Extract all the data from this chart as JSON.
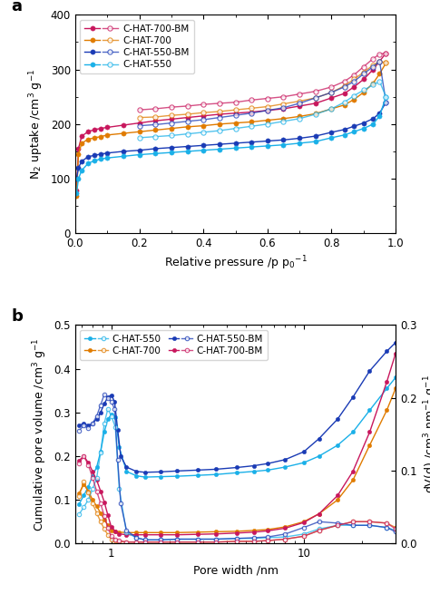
{
  "panel_a": {
    "xlabel": "Relative pressure /p p$_0$$^{-1}$",
    "ylabel": "N$_2$ uptake /cm$^3$ g$^{-1}$",
    "ylim": [
      0,
      400
    ],
    "yticks": [
      0,
      100,
      200,
      300,
      400
    ],
    "xlim": [
      0.0,
      1.0
    ],
    "xticks": [
      0.0,
      0.2,
      0.4,
      0.6,
      0.8,
      1.0
    ],
    "series": [
      {
        "label": "C-HAT-700-BM",
        "color": "#c8175d",
        "ads_x": [
          0.004,
          0.01,
          0.02,
          0.04,
          0.06,
          0.08,
          0.1,
          0.15,
          0.2,
          0.25,
          0.3,
          0.35,
          0.4,
          0.45,
          0.5,
          0.55,
          0.6,
          0.65,
          0.7,
          0.75,
          0.8,
          0.84,
          0.87,
          0.9,
          0.93,
          0.95,
          0.97
        ],
        "ads_y": [
          78,
          155,
          178,
          186,
          190,
          192,
          194,
          198,
          202,
          206,
          209,
          212,
          215,
          218,
          220,
          222,
          225,
          228,
          233,
          238,
          248,
          256,
          268,
          282,
          300,
          315,
          330
        ],
        "des_x": [
          0.97,
          0.95,
          0.93,
          0.9,
          0.87,
          0.84,
          0.8,
          0.75,
          0.7,
          0.65,
          0.6,
          0.55,
          0.5,
          0.45,
          0.4,
          0.35,
          0.3,
          0.25,
          0.2
        ],
        "des_y": [
          330,
          328,
          320,
          305,
          290,
          278,
          268,
          260,
          255,
          250,
          247,
          244,
          240,
          238,
          236,
          233,
          231,
          228,
          226
        ]
      },
      {
        "label": "C-HAT-700",
        "color": "#e07b00",
        "ads_x": [
          0.004,
          0.01,
          0.02,
          0.04,
          0.06,
          0.08,
          0.1,
          0.15,
          0.2,
          0.25,
          0.3,
          0.35,
          0.4,
          0.45,
          0.5,
          0.55,
          0.6,
          0.65,
          0.7,
          0.75,
          0.8,
          0.84,
          0.87,
          0.9,
          0.93,
          0.95,
          0.97
        ],
        "ads_y": [
          68,
          145,
          165,
          172,
          175,
          177,
          180,
          183,
          186,
          189,
          192,
          195,
          197,
          200,
          202,
          204,
          207,
          210,
          214,
          219,
          228,
          235,
          245,
          258,
          275,
          292,
          312
        ],
        "des_x": [
          0.97,
          0.95,
          0.93,
          0.9,
          0.87,
          0.84,
          0.8,
          0.75,
          0.7,
          0.65,
          0.6,
          0.55,
          0.5,
          0.45,
          0.4,
          0.35,
          0.3,
          0.25,
          0.2
        ],
        "des_y": [
          312,
          315,
          308,
          295,
          282,
          270,
          258,
          248,
          242,
          237,
          232,
          229,
          226,
          223,
          221,
          218,
          216,
          213,
          212
        ]
      },
      {
        "label": "C-HAT-550-BM",
        "color": "#1a3bb5",
        "ads_x": [
          0.004,
          0.01,
          0.02,
          0.04,
          0.06,
          0.08,
          0.1,
          0.15,
          0.2,
          0.25,
          0.3,
          0.35,
          0.4,
          0.45,
          0.5,
          0.55,
          0.6,
          0.65,
          0.7,
          0.75,
          0.8,
          0.84,
          0.87,
          0.9,
          0.93,
          0.95,
          0.97
        ],
        "ads_y": [
          100,
          120,
          132,
          140,
          143,
          145,
          147,
          150,
          152,
          155,
          157,
          159,
          161,
          163,
          165,
          167,
          169,
          171,
          174,
          178,
          185,
          190,
          196,
          202,
          210,
          220,
          240
        ],
        "des_x": [
          0.97,
          0.95,
          0.93,
          0.9,
          0.87,
          0.84,
          0.8,
          0.75,
          0.7,
          0.65,
          0.6,
          0.55,
          0.5,
          0.45,
          0.4,
          0.35,
          0.3,
          0.25,
          0.2
        ],
        "des_y": [
          240,
          315,
          305,
          292,
          278,
          268,
          258,
          248,
          238,
          230,
          225,
          220,
          216,
          212,
          208,
          205,
          202,
          199,
          197
        ]
      },
      {
        "label": "C-HAT-550",
        "color": "#1ab0e8",
        "ads_x": [
          0.004,
          0.01,
          0.02,
          0.04,
          0.06,
          0.08,
          0.1,
          0.15,
          0.2,
          0.25,
          0.3,
          0.35,
          0.4,
          0.45,
          0.5,
          0.55,
          0.6,
          0.65,
          0.7,
          0.75,
          0.8,
          0.84,
          0.87,
          0.9,
          0.93,
          0.95,
          0.97
        ],
        "ads_y": [
          73,
          100,
          115,
          128,
          133,
          136,
          138,
          141,
          144,
          146,
          148,
          150,
          152,
          154,
          156,
          158,
          160,
          162,
          165,
          168,
          175,
          180,
          186,
          192,
          200,
          215,
          250
        ],
        "des_x": [
          0.97,
          0.95,
          0.93,
          0.9,
          0.87,
          0.84,
          0.8,
          0.75,
          0.7,
          0.65,
          0.6,
          0.55,
          0.5,
          0.45,
          0.4,
          0.35,
          0.3,
          0.25,
          0.2
        ],
        "des_y": [
          250,
          278,
          272,
          262,
          252,
          240,
          228,
          218,
          210,
          205,
          200,
          196,
          192,
          188,
          185,
          182,
          179,
          177,
          175
        ]
      }
    ]
  },
  "panel_b": {
    "xlabel": "Pore width /nm",
    "ylabel_left": "Cumulative pore volume /cm$^3$ g$^{-1}$",
    "ylabel_right": "dV(d) /cm$^3$ nm$^{-1}$ g$^{-1}$",
    "ylim_left": [
      0,
      0.5
    ],
    "ylim_right": [
      0,
      0.3
    ],
    "yticks_left": [
      0.0,
      0.1,
      0.2,
      0.3,
      0.4,
      0.5
    ],
    "yticks_right": [
      0.0,
      0.1,
      0.2,
      0.3
    ],
    "xlim": [
      0.65,
      30
    ],
    "series": [
      {
        "label": "C-HAT-550",
        "color": "#1ab0e8",
        "cum_x": [
          0.68,
          0.72,
          0.76,
          0.8,
          0.84,
          0.88,
          0.92,
          0.96,
          1.0,
          1.05,
          1.1,
          1.2,
          1.35,
          1.5,
          1.8,
          2.2,
          2.8,
          3.5,
          4.5,
          5.5,
          6.5,
          8.0,
          10.0,
          12.0,
          15.0,
          18.0,
          22.0,
          27.0,
          30.0
        ],
        "cum_y": [
          0.09,
          0.11,
          0.13,
          0.155,
          0.175,
          0.21,
          0.255,
          0.285,
          0.295,
          0.29,
          0.22,
          0.165,
          0.155,
          0.152,
          0.153,
          0.154,
          0.156,
          0.158,
          0.162,
          0.165,
          0.168,
          0.175,
          0.185,
          0.2,
          0.225,
          0.255,
          0.305,
          0.355,
          0.38
        ],
        "dvd_x": [
          0.68,
          0.72,
          0.76,
          0.8,
          0.84,
          0.88,
          0.92,
          0.96,
          1.0,
          1.05,
          1.1,
          1.2,
          1.35,
          1.5,
          1.8,
          2.2,
          2.8,
          3.5,
          4.5,
          5.5,
          6.5,
          8.0,
          10.0,
          12.0,
          15.0,
          18.0,
          22.0,
          27.0,
          30.0
        ],
        "dvd_y": [
          0.04,
          0.05,
          0.06,
          0.075,
          0.09,
          0.125,
          0.165,
          0.185,
          0.175,
          0.16,
          0.075,
          0.015,
          0.008,
          0.005,
          0.005,
          0.006,
          0.006,
          0.006,
          0.007,
          0.007,
          0.008,
          0.009,
          0.013,
          0.02,
          0.025,
          0.025,
          0.025,
          0.022,
          0.018
        ]
      },
      {
        "label": "C-HAT-700",
        "color": "#e07b00",
        "cum_x": [
          0.68,
          0.72,
          0.76,
          0.8,
          0.84,
          0.88,
          0.92,
          0.96,
          1.0,
          1.05,
          1.1,
          1.2,
          1.35,
          1.5,
          1.8,
          2.2,
          2.8,
          3.5,
          4.5,
          5.5,
          6.5,
          8.0,
          10.0,
          12.0,
          15.0,
          18.0,
          22.0,
          27.0,
          30.0
        ],
        "cum_y": [
          0.115,
          0.135,
          0.12,
          0.1,
          0.085,
          0.07,
          0.055,
          0.042,
          0.03,
          0.027,
          0.026,
          0.025,
          0.025,
          0.025,
          0.025,
          0.025,
          0.026,
          0.027,
          0.028,
          0.03,
          0.032,
          0.038,
          0.05,
          0.068,
          0.1,
          0.145,
          0.225,
          0.305,
          0.355
        ],
        "dvd_x": [
          0.68,
          0.72,
          0.76,
          0.8,
          0.84,
          0.88,
          0.92,
          0.96,
          1.0,
          1.05,
          1.1,
          1.2,
          1.35,
          1.5,
          1.8,
          2.2,
          2.8,
          3.5,
          4.5,
          5.5,
          6.5,
          8.0,
          10.0,
          12.0,
          15.0,
          18.0,
          22.0,
          27.0,
          30.0
        ],
        "dvd_y": [
          0.065,
          0.085,
          0.07,
          0.055,
          0.042,
          0.03,
          0.02,
          0.012,
          0.006,
          0.004,
          0.003,
          0.002,
          0.002,
          0.002,
          0.002,
          0.002,
          0.002,
          0.002,
          0.003,
          0.003,
          0.004,
          0.006,
          0.01,
          0.018,
          0.025,
          0.03,
          0.03,
          0.028,
          0.022
        ]
      },
      {
        "label": "C-HAT-550-BM",
        "color": "#1a3bb5",
        "cum_x": [
          0.68,
          0.72,
          0.76,
          0.8,
          0.84,
          0.88,
          0.92,
          0.96,
          1.0,
          1.04,
          1.08,
          1.12,
          1.2,
          1.35,
          1.5,
          1.8,
          2.2,
          2.8,
          3.5,
          4.5,
          5.5,
          6.5,
          8.0,
          10.0,
          12.0,
          15.0,
          18.0,
          22.0,
          27.0,
          30.0
        ],
        "cum_y": [
          0.27,
          0.275,
          0.27,
          0.275,
          0.285,
          0.3,
          0.32,
          0.335,
          0.34,
          0.325,
          0.26,
          0.2,
          0.175,
          0.165,
          0.163,
          0.164,
          0.166,
          0.168,
          0.17,
          0.174,
          0.178,
          0.183,
          0.192,
          0.21,
          0.24,
          0.285,
          0.335,
          0.395,
          0.44,
          0.46
        ],
        "dvd_x": [
          0.68,
          0.72,
          0.76,
          0.8,
          0.84,
          0.88,
          0.92,
          0.96,
          1.0,
          1.04,
          1.08,
          1.12,
          1.2,
          1.35,
          1.5,
          1.8,
          2.2,
          2.8,
          3.5,
          4.5,
          5.5,
          6.5,
          8.0,
          10.0,
          12.0,
          15.0,
          18.0,
          22.0,
          27.0,
          30.0
        ],
        "dvd_y": [
          0.155,
          0.162,
          0.158,
          0.165,
          0.175,
          0.19,
          0.205,
          0.2,
          0.195,
          0.185,
          0.115,
          0.055,
          0.018,
          0.008,
          0.005,
          0.005,
          0.006,
          0.006,
          0.006,
          0.007,
          0.008,
          0.009,
          0.013,
          0.022,
          0.03,
          0.028,
          0.025,
          0.025,
          0.022,
          0.016
        ]
      },
      {
        "label": "C-HAT-700-BM",
        "color": "#c8175d",
        "cum_x": [
          0.68,
          0.72,
          0.76,
          0.8,
          0.84,
          0.88,
          0.92,
          0.96,
          1.0,
          1.05,
          1.1,
          1.2,
          1.35,
          1.5,
          1.8,
          2.2,
          2.8,
          3.5,
          4.5,
          5.5,
          6.5,
          8.0,
          10.0,
          12.0,
          15.0,
          18.0,
          22.0,
          27.0,
          30.0
        ],
        "cum_y": [
          0.19,
          0.2,
          0.185,
          0.165,
          0.145,
          0.12,
          0.095,
          0.065,
          0.038,
          0.028,
          0.022,
          0.02,
          0.02,
          0.02,
          0.02,
          0.02,
          0.021,
          0.022,
          0.024,
          0.026,
          0.029,
          0.035,
          0.048,
          0.068,
          0.11,
          0.165,
          0.255,
          0.37,
          0.435
        ],
        "dvd_x": [
          0.68,
          0.72,
          0.76,
          0.8,
          0.84,
          0.88,
          0.92,
          0.96,
          1.0,
          1.05,
          1.1,
          1.2,
          1.35,
          1.5,
          1.8,
          2.2,
          2.8,
          3.5,
          4.5,
          5.5,
          6.5,
          8.0,
          10.0,
          12.0,
          15.0,
          18.0,
          22.0,
          27.0,
          30.0
        ],
        "dvd_y": [
          0.11,
          0.12,
          0.108,
          0.09,
          0.072,
          0.055,
          0.038,
          0.022,
          0.01,
          0.006,
          0.004,
          0.002,
          0.002,
          0.002,
          0.002,
          0.002,
          0.002,
          0.002,
          0.003,
          0.003,
          0.004,
          0.006,
          0.01,
          0.018,
          0.025,
          0.03,
          0.03,
          0.028,
          0.02
        ]
      }
    ]
  }
}
